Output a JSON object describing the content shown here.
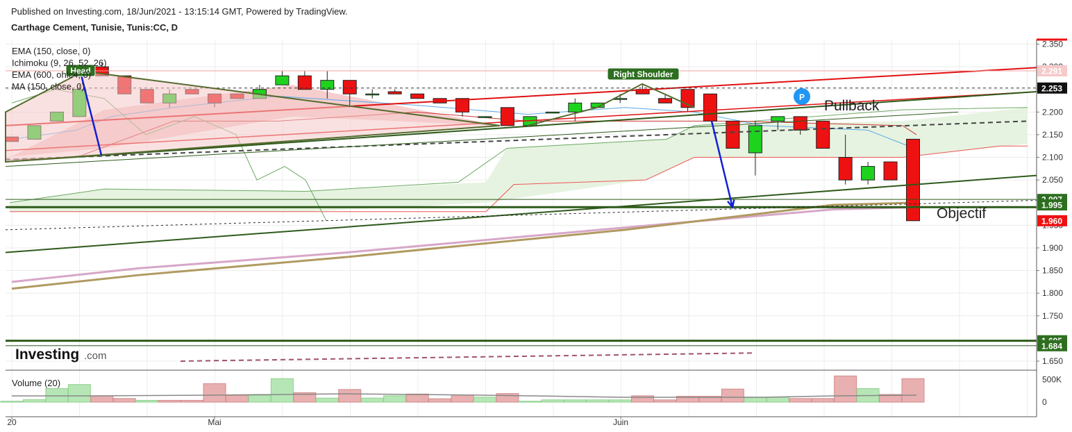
{
  "header": {
    "published": "Published on Investing.com, 18/Jun/2021 - 13:15:14 GMT, Powered by TradingView.",
    "symbol": "Carthage Cement, Tunisie, Tunis:CC, D"
  },
  "indicators": [
    "EMA (150, close, 0)",
    "Ichimoku (9, 26, 52, 26)",
    "EMA (600, ohlc4, 0)",
    "MA (150, close, 0)"
  ],
  "watermark": {
    "brand": "Investing",
    "suffix": ".com"
  },
  "volume_label": "Volume (20)",
  "colors": {
    "up": "#1ed31e",
    "down": "#ee1111",
    "grid": "#ececec",
    "axis": "#999999",
    "resistance": "#e01010",
    "support": "#2e5a1a",
    "cloud_green": "#e3f2dd",
    "cloud_red": "#f5c9c9",
    "ema600": "#b09a60",
    "ma150": "#d7a6c8",
    "arrow": "#1020d0",
    "badge_green": "#2d6e1f"
  },
  "chart_data": {
    "type": "candlestick",
    "xlabels": [
      "20",
      "Mai",
      "Juin"
    ],
    "yticks": [
      2.35,
      2.3,
      2.25,
      2.2,
      2.15,
      2.1,
      2.05,
      1.95,
      1.9,
      1.85,
      1.8,
      1.75,
      1.65
    ],
    "ylim": [
      1.63,
      2.36
    ],
    "price_labels": [
      {
        "value": 2.291,
        "text": "2.291",
        "color": "#ee1111",
        "style": "light"
      },
      {
        "value": 2.253,
        "text": "2.253",
        "color": "#111111",
        "style": "dark"
      },
      {
        "value": 2.007,
        "text": "2.007",
        "color": "#2d6e1f",
        "style": "dark"
      },
      {
        "value": 1.995,
        "text": "1.995",
        "color": "#2d6e1f",
        "style": "dark"
      },
      {
        "value": 1.96,
        "text": "1.960",
        "color": "#ee1111",
        "style": "dark"
      },
      {
        "value": 1.695,
        "text": "1.695",
        "color": "#2d6e1f",
        "style": "dark"
      },
      {
        "value": 1.684,
        "text": "1.684",
        "color": "#2d6e1f",
        "style": "dark"
      }
    ],
    "candles": [
      {
        "o": 2.145,
        "h": 2.145,
        "c": 2.135,
        "l": 2.135
      },
      {
        "o": 2.14,
        "h": 2.17,
        "c": 2.17,
        "l": 2.14
      },
      {
        "o": 2.18,
        "h": 2.2,
        "c": 2.2,
        "l": 2.18
      },
      {
        "o": 2.19,
        "h": 2.26,
        "c": 2.25,
        "l": 2.19
      },
      {
        "o": 2.3,
        "h": 2.31,
        "c": 2.28,
        "l": 2.28
      },
      {
        "o": 2.28,
        "h": 2.28,
        "c": 2.24,
        "l": 2.24
      },
      {
        "o": 2.25,
        "h": 2.25,
        "c": 2.22,
        "l": 2.22
      },
      {
        "o": 2.22,
        "h": 2.25,
        "c": 2.24,
        "l": 2.21
      },
      {
        "o": 2.25,
        "h": 2.25,
        "c": 2.24,
        "l": 2.24
      },
      {
        "o": 2.24,
        "h": 2.24,
        "c": 2.22,
        "l": 2.21
      },
      {
        "o": 2.24,
        "h": 2.24,
        "c": 2.23,
        "l": 2.23
      },
      {
        "o": 2.23,
        "h": 2.26,
        "c": 2.25,
        "l": 2.23
      },
      {
        "o": 2.26,
        "h": 2.29,
        "c": 2.28,
        "l": 2.26
      },
      {
        "o": 2.28,
        "h": 2.29,
        "c": 2.25,
        "l": 2.25
      },
      {
        "o": 2.25,
        "h": 2.29,
        "c": 2.27,
        "l": 2.23
      },
      {
        "o": 2.27,
        "h": 2.27,
        "c": 2.24,
        "l": 2.21
      },
      {
        "o": 2.24,
        "h": 2.25,
        "c": 2.24,
        "l": 2.23
      },
      {
        "o": 2.245,
        "h": 2.25,
        "c": 2.24,
        "l": 2.24
      },
      {
        "o": 2.24,
        "h": 2.24,
        "c": 2.23,
        "l": 2.23
      },
      {
        "o": 2.23,
        "h": 2.23,
        "c": 2.22,
        "l": 2.22
      },
      {
        "o": 2.23,
        "h": 2.23,
        "c": 2.2,
        "l": 2.19
      },
      {
        "o": 2.19,
        "h": 2.19,
        "c": 2.19,
        "l": 2.19
      },
      {
        "o": 2.21,
        "h": 2.21,
        "c": 2.17,
        "l": 2.17
      },
      {
        "o": 2.17,
        "h": 2.19,
        "c": 2.19,
        "l": 2.17
      },
      {
        "o": 2.2,
        "h": 2.2,
        "c": 2.2,
        "l": 2.2
      },
      {
        "o": 2.2,
        "h": 2.23,
        "c": 2.22,
        "l": 2.18
      },
      {
        "o": 2.21,
        "h": 2.22,
        "c": 2.22,
        "l": 2.21
      },
      {
        "o": 2.23,
        "h": 2.24,
        "c": 2.23,
        "l": 2.22
      },
      {
        "o": 2.25,
        "h": 2.26,
        "c": 2.24,
        "l": 2.24
      },
      {
        "o": 2.23,
        "h": 2.24,
        "c": 2.22,
        "l": 2.22
      },
      {
        "o": 2.25,
        "h": 2.25,
        "c": 2.21,
        "l": 2.2
      },
      {
        "o": 2.24,
        "h": 2.24,
        "c": 2.18,
        "l": 2.18
      },
      {
        "o": 2.18,
        "h": 2.18,
        "c": 2.12,
        "l": 2.12
      },
      {
        "o": 2.11,
        "h": 2.18,
        "c": 2.17,
        "l": 2.06
      },
      {
        "o": 2.18,
        "h": 2.19,
        "c": 2.19,
        "l": 2.16
      },
      {
        "o": 2.19,
        "h": 2.19,
        "c": 2.16,
        "l": 2.15
      },
      {
        "o": 2.18,
        "h": 2.18,
        "c": 2.12,
        "l": 2.12
      },
      {
        "o": 2.1,
        "h": 2.15,
        "c": 2.05,
        "l": 2.04
      },
      {
        "o": 2.05,
        "h": 2.09,
        "c": 2.08,
        "l": 2.04
      },
      {
        "o": 2.09,
        "h": 2.09,
        "c": 2.05,
        "l": 2.05
      },
      {
        "o": 2.14,
        "h": 2.14,
        "c": 1.96,
        "l": 1.96
      }
    ],
    "volume": {
      "yticks": [
        "500K",
        "0"
      ],
      "values": [
        20,
        55,
        300,
        390,
        140,
        80,
        40,
        40,
        40,
        410,
        150,
        150,
        520,
        210,
        90,
        280,
        90,
        140,
        180,
        75,
        160,
        110,
        190,
        20,
        50,
        50,
        50,
        50,
        140,
        50,
        130,
        130,
        290,
        110,
        110,
        80,
        80,
        580,
        300,
        170,
        520
      ],
      "up": [
        true,
        true,
        true,
        true,
        false,
        false,
        true,
        false,
        false,
        false,
        false,
        true,
        true,
        false,
        true,
        false,
        true,
        true,
        false,
        false,
        false,
        true,
        false,
        true,
        true,
        true,
        true,
        true,
        false,
        false,
        false,
        false,
        false,
        true,
        true,
        false,
        false,
        false,
        true,
        false,
        false
      ]
    },
    "annotations": {
      "badges": [
        {
          "text": "Head"
        },
        {
          "text": "Right Shoulder"
        }
      ],
      "labels": [
        "Pullback",
        "Objectif"
      ],
      "pin": "P"
    }
  }
}
